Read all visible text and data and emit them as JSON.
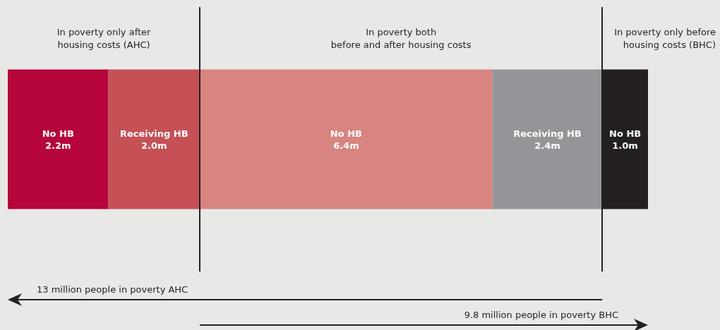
{
  "chart_data": {
    "type": "bar",
    "orientation": "horizontal",
    "stacked": true,
    "categories": [
      null
    ],
    "series": [
      {
        "name": "No HB",
        "color": "#b5053a",
        "values": [
          2.2
        ],
        "value_labels": [
          "2.2m"
        ]
      },
      {
        "name": "Receiving HB",
        "color": "#c55157",
        "values": [
          2.0
        ],
        "value_labels": [
          "2.0m"
        ]
      },
      {
        "name": "No HB",
        "color": "#d88480",
        "values": [
          6.4
        ],
        "value_labels": [
          "6.4m"
        ]
      },
      {
        "name": "Receiving HB",
        "color": "#939598",
        "values": [
          2.4
        ],
        "value_labels": [
          "2.4m"
        ]
      },
      {
        "name": "No HB",
        "color": "#231f20",
        "values": [
          1.0
        ],
        "value_labels": [
          "1.0m"
        ]
      }
    ],
    "xlim": [
      0,
      14
    ],
    "tick_labels": false,
    "grid": false,
    "legend": false,
    "ref_lines": [
      {
        "axis": "x",
        "value": 4.2,
        "color": "#231f20"
      },
      {
        "axis": "x",
        "value": 13,
        "color": "#231f20"
      }
    ],
    "annotations": [
      "In poverty only after\nhousing costs (AHC)",
      "In poverty both\nbefore and after housing costs",
      "In poverty only before\nhousing costs (BHC)",
      "13 million people in poverty AHC",
      "9.8 million people in poverty BHC"
    ]
  }
}
